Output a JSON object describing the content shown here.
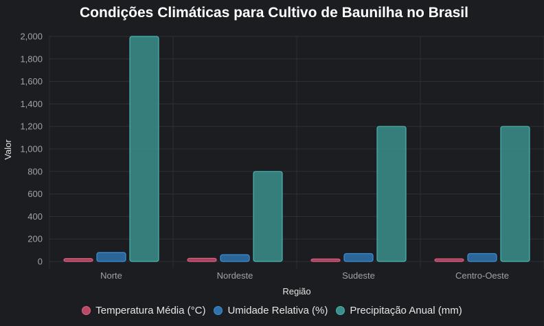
{
  "chart_data": {
    "type": "bar",
    "title": "Condições Climáticas para Cultivo de Baunilha no Brasil",
    "xlabel": "Região",
    "ylabel": "Valor",
    "ylim": [
      0,
      2000
    ],
    "yticks": [
      0,
      200,
      400,
      600,
      800,
      1000,
      1200,
      1400,
      1600,
      1800,
      2000
    ],
    "ytick_labels": [
      "0",
      "200",
      "400",
      "600",
      "800",
      "1,000",
      "1,200",
      "1,400",
      "1,600",
      "1,800",
      "2,000"
    ],
    "categories": [
      "Norte",
      "Nordeste",
      "Sudeste",
      "Centro-Oeste"
    ],
    "series": [
      {
        "name": "Temperatura Média (°C)",
        "values": [
          26,
          28,
          22,
          24
        ],
        "color": "#b84a68",
        "border": "#e0607f"
      },
      {
        "name": "Umidade Relativa (%)",
        "values": [
          80,
          60,
          70,
          70
        ],
        "color": "#2f72ad",
        "border": "#3d8fd6"
      },
      {
        "name": "Precipitação Anual (mm)",
        "values": [
          2000,
          800,
          1200,
          1200
        ],
        "color": "#3a8f8c",
        "border": "#4ab5b0"
      }
    ],
    "grid": true,
    "legend_position": "bottom"
  }
}
